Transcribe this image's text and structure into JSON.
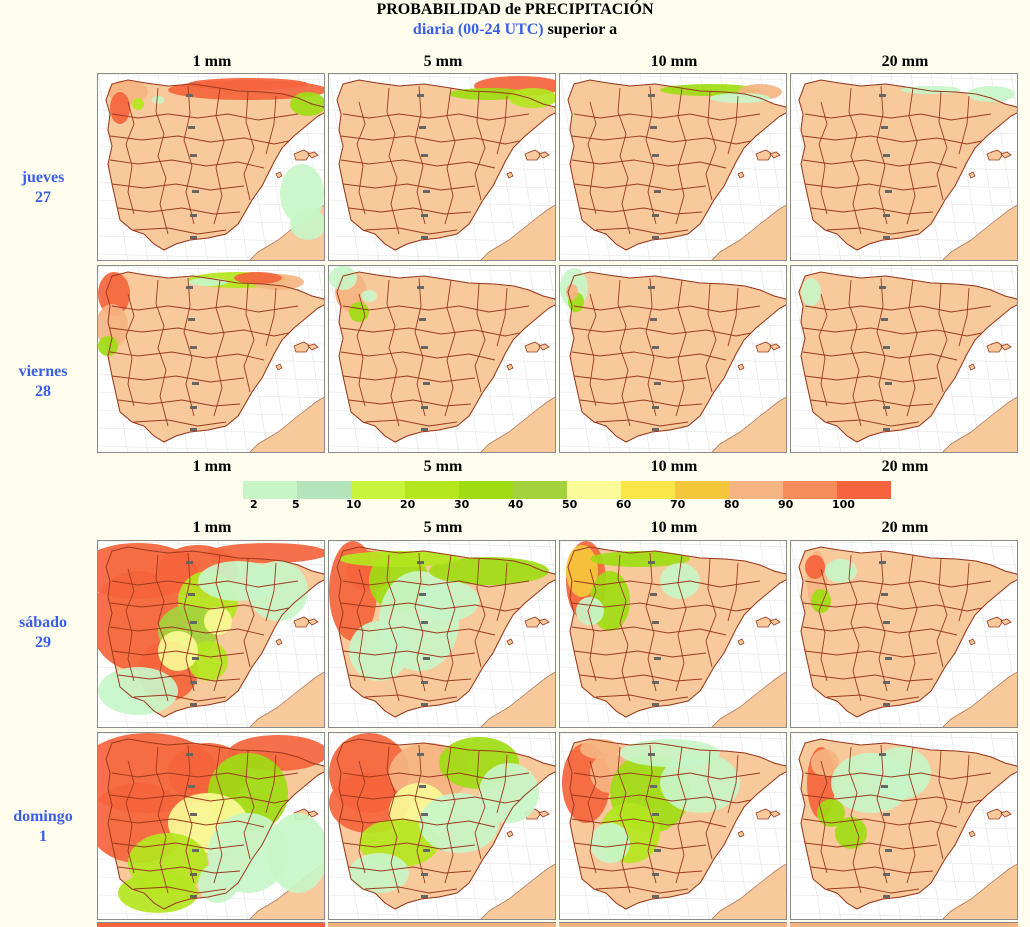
{
  "title": {
    "line1": "PROBABILIDAD de PRECIPITACIÓN",
    "line2_blue": "diaria (00-24 UTC)",
    "line2_black": "superior a"
  },
  "thresholds": [
    "1 mm",
    "5 mm",
    "10 mm",
    "20 mm"
  ],
  "days": [
    {
      "name": "jueves",
      "num": "27"
    },
    {
      "name": "viernes",
      "num": "28"
    },
    {
      "name": "sábado",
      "num": "29"
    },
    {
      "name": "domingo",
      "num": "1"
    }
  ],
  "legend": {
    "labels": [
      "2",
      "5",
      "10",
      "20",
      "30",
      "40",
      "50",
      "60",
      "70",
      "80",
      "90",
      "100"
    ],
    "colors": [
      "#c8f5c8",
      "#b4e4bc",
      "#c8f53c",
      "#b4e61e",
      "#a0dc14",
      "#a4d23c",
      "#fafa96",
      "#fae646",
      "#f5c83c",
      "#f5b482",
      "#f58c5a",
      "#f5643c"
    ]
  },
  "colors": {
    "sea": "#ffffff",
    "land": "#f7c99b",
    "border": "#9b3a1e",
    "title_blue": "#3a5ee8"
  }
}
